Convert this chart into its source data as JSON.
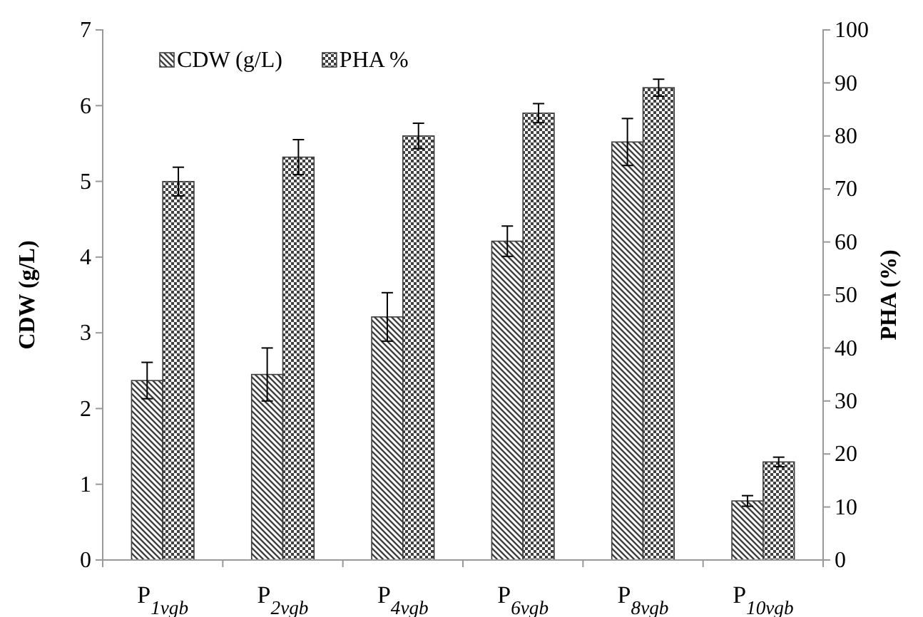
{
  "chart_data": {
    "type": "bar",
    "ylabel": "CDW  (g/L)",
    "y2label": "PHA  (%)",
    "categories": [
      "P$_{1vgb}$",
      "P$_{2vgb}$",
      "P$_{4vgb}$",
      "P$_{6vgb}$",
      "P$_{8vgb}$",
      "P$_{10vgb}$"
    ],
    "series": [
      {
        "name": "CDW  (g/L)",
        "color": "#404040",
        "values": [
          2.37,
          2.45,
          3.21,
          4.21,
          5.52,
          0.78
        ],
        "errors": [
          0.24,
          0.35,
          0.32,
          0.2,
          0.31,
          0.07
        ]
      },
      {
        "name": "PHA %",
        "color": "#404040",
        "axis": "y2",
        "values": [
          71.4,
          76,
          80,
          84.3,
          89.1,
          18.5
        ],
        "errors": [
          2.7,
          3.3,
          2.4,
          1.8,
          1.6,
          0.9
        ]
      }
    ],
    "ylim": [
      0,
      7
    ],
    "yticks": [
      0,
      1,
      2,
      3,
      4,
      5,
      6,
      7
    ],
    "y2lim": [
      0,
      100
    ],
    "y2ticks": [
      0,
      10,
      20,
      30,
      40,
      50,
      60,
      70,
      80,
      90,
      100
    ],
    "grid": false,
    "legend": "top left"
  }
}
